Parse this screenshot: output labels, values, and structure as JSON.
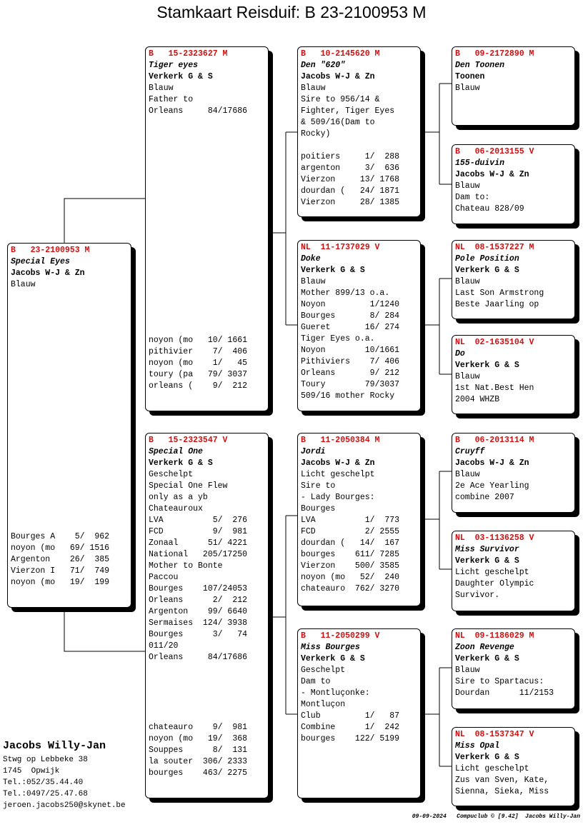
{
  "title": "Stamkaart Reisduif: B   23-2100953 M",
  "pedigree": [
    {
      "ring": "B   23-2100953 M",
      "name": "Special Eyes",
      "owner": "Jacobs W-J & Zn",
      "notes": [
        "Blauw"
      ],
      "results": [
        "Bourges A    5/  962",
        "noyon (mo   69/ 1516",
        "Argenton    26/  385",
        "Vierzon I   71/  749",
        "noyon (mo   19/  199"
      ]
    },
    {
      "ring": "B   15-2323627 M",
      "name": "Tiger eyes",
      "owner": "Verkerk G & S",
      "notes": [
        "Blauw",
        "Father to",
        "Orleans     84/17686"
      ],
      "results": [
        "noyon (mo   10/ 1661",
        "pithivier    7/  406",
        "noyon (mo    1/   45",
        "toury (pa   79/ 3037",
        "orleans (    9/  212"
      ]
    },
    {
      "ring": "B   15-2323547 V",
      "name": "Special One",
      "owner": "Verkerk G & S",
      "notes": [
        "Geschelpt",
        "Special One Flew",
        "only as a yb",
        "Chateauroux",
        "LVA          5/  276",
        "FCD          9/  981",
        "Zonaal      51/ 4221",
        "National   205/17250",
        "Mother to Bonte",
        "Paccou",
        "Bourges    107/24053",
        "Orleans      2/  212",
        "Argenton    99/ 6640",
        "Sermaises  124/ 3938",
        "Bourges      3/   74",
        "011/20",
        "Orleans     84/17686"
      ],
      "results": [
        "chateauro    9/  981",
        "noyon (mo   19/  368",
        "Souppes      8/  131",
        "la souter  306/ 2333",
        "bourges    463/ 2275"
      ]
    },
    {
      "ring": "B   10-2145620 M",
      "name": "Den \"620\"",
      "owner": "Jacobs W-J & Zn",
      "notes": [
        "Blauw",
        "Sire to 956/14 &",
        "Fighter, Tiger Eyes",
        "& 509/16(Dam to",
        "Rocky)"
      ],
      "results": [
        "poitiers     1/  288",
        "argenton     3/  636",
        "Vierzon     13/ 1768",
        "dourdan (   24/ 1871",
        "Vierzon     28/ 1385"
      ]
    },
    {
      "ring": "NL  11-1737029 V",
      "name": "Doke",
      "owner": "Verkerk G & S",
      "notes": [
        "Blauw",
        "Mother 899/13 o.a.",
        "Noyon         1/1240",
        "Bourges       8/ 284",
        "Gueret       16/ 274",
        "Tiger Eyes o.a.",
        "Noyon        10/1661",
        "Pithiviers    7/ 406",
        "Orleans       9/ 212",
        "Toury        79/3037",
        "509/16 mother Rocky"
      ]
    },
    {
      "ring": "B   11-2050384 M",
      "name": "Jordi",
      "owner": "Jacobs W-J & Zn",
      "notes": [
        "Licht geschelpt",
        "Sire to",
        "- Lady Bourges:",
        "Bourges",
        "LVA          1/  773",
        "FCD          2/ 2555",
        "dourdan (   14/  167",
        "bourges    611/ 7285",
        "Vierzon    500/ 3585",
        "noyon (mo   52/  240",
        "chateauro  762/ 3270"
      ]
    },
    {
      "ring": "B   11-2050299 V",
      "name": "Miss Bourges",
      "owner": "Verkerk G & S",
      "notes": [
        "Geschelpt",
        "Dam to",
        "- Montluçonke:",
        "Montluçon",
        "Club         1/   87",
        "Combine      1/  242",
        "bourges    122/ 5199"
      ]
    },
    {
      "ring": "B   09-2172890 M",
      "name": "Den Toonen",
      "owner": "Toonen",
      "notes": [
        "Blauw"
      ]
    },
    {
      "ring": "B   06-2013155 V",
      "name": "155-duivin",
      "owner": "Jacobs W-J & Zn",
      "notes": [
        "Blauw",
        "Dam to:",
        "Chateau 828/09"
      ]
    },
    {
      "ring": "NL  08-1537227 M",
      "name": "Pole Position",
      "owner": "Verkerk G & S",
      "notes": [
        "Blauw",
        "Last Son Armstrong",
        "Beste Jaarling op"
      ]
    },
    {
      "ring": "NL  02-1635104 V",
      "name": "Do",
      "owner": "Verkerk G & S",
      "notes": [
        "Blauw",
        "1st Nat.Best Hen",
        "2004 WHZB"
      ]
    },
    {
      "ring": "B   06-2013114 M",
      "name": "Cruyff",
      "owner": "Jacobs W-J & Zn",
      "notes": [
        "Blauw",
        "2e Ace Yearling",
        "combine 2007"
      ]
    },
    {
      "ring": "NL  03-1136258 V",
      "name": "Miss Survivor",
      "owner": "Verkerk G & S",
      "notes": [
        "Licht geschelpt",
        "Daughter Olympic",
        "Survivor."
      ]
    },
    {
      "ring": "NL  09-1186029 M",
      "name": "Zoon Revenge",
      "owner": "Verkerk G & S",
      "notes": [
        "Blauw",
        "Sire to Spartacus:",
        "Dourdan      11/2153"
      ]
    },
    {
      "ring": "NL  08-1537347 V",
      "name": "Miss Opal",
      "owner": "Verkerk G & S",
      "notes": [
        "Licht geschelpt",
        "Zus van Sven, Kate,",
        "Sienna, Sieka, Miss"
      ]
    }
  ],
  "breeder": {
    "name": "Jacobs Willy-Jan",
    "lines": [
      "Stwg op Lebbeke 38",
      "1745  Opwijk",
      "Tel.:052/35.44.40",
      "Tel.:0497/25.47.68",
      "jeroen.jacobs250@skynet.be"
    ]
  },
  "footer": "09-09-2024   Compuclub © [9.42]  Jacobs Willy-Jan"
}
